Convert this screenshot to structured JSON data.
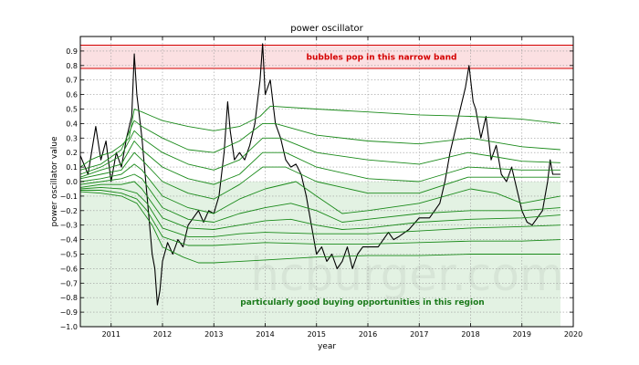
{
  "chart_data": {
    "type": "line",
    "title": "power oscillator",
    "xlabel": "year",
    "ylabel": "power oscillator value",
    "xlim": [
      2010.4,
      2020.0
    ],
    "ylim": [
      -1.0,
      1.0
    ],
    "grid": true,
    "x_ticks": [
      "2011",
      "2012",
      "2013",
      "2014",
      "2015",
      "2016",
      "2017",
      "2018",
      "2019",
      "2020"
    ],
    "y_ticks": [
      "−1.0",
      "−0.9",
      "−0.8",
      "−0.7",
      "−0.6",
      "−0.5",
      "−0.4",
      "−0.3",
      "−0.2",
      "−0.1",
      "0.0",
      "0.1",
      "0.2",
      "0.3",
      "0.4",
      "0.5",
      "0.6",
      "0.7",
      "0.8",
      "0.9"
    ],
    "top_band": {
      "y_range": [
        0.78,
        0.94
      ],
      "label": "bubbles pop in this narrow band",
      "color": "#d40000",
      "fill": "#fbe0e2"
    },
    "bottom_region": {
      "y_range": [
        -1.0,
        0.0
      ],
      "x_range": [
        2010.4,
        2019.75
      ],
      "label": "particularly good buying opportunities in this region",
      "color": "#1a7a1a",
      "fill": "#e3f2e3"
    },
    "watermark": "hcburger.com",
    "series": [
      {
        "color": "#000000",
        "x": [
          2010.4,
          2010.55,
          2010.7,
          2010.8,
          2010.9,
          2011.0,
          2011.1,
          2011.2,
          2011.3,
          2011.4,
          2011.45,
          2011.5,
          2011.6,
          2011.7,
          2011.8,
          2011.85,
          2011.9,
          2011.95,
          2012.0,
          2012.1,
          2012.2,
          2012.3,
          2012.4,
          2012.5,
          2012.6,
          2012.7,
          2012.8,
          2012.9,
          2013.0,
          2013.1,
          2013.2,
          2013.27,
          2013.32,
          2013.4,
          2013.5,
          2013.6,
          2013.7,
          2013.8,
          2013.9,
          2013.95,
          2014.0,
          2014.1,
          2014.2,
          2014.3,
          2014.4,
          2014.5,
          2014.6,
          2014.7,
          2014.8,
          2014.9,
          2015.0,
          2015.1,
          2015.2,
          2015.3,
          2015.4,
          2015.5,
          2015.6,
          2015.7,
          2015.8,
          2015.9,
          2016.0,
          2016.2,
          2016.4,
          2016.5,
          2016.6,
          2016.8,
          2017.0,
          2017.2,
          2017.4,
          2017.5,
          2017.6,
          2017.8,
          2017.9,
          2017.97,
          2018.05,
          2018.1,
          2018.2,
          2018.3,
          2018.4,
          2018.5,
          2018.6,
          2018.7,
          2018.8,
          2018.9,
          2019.0,
          2019.1,
          2019.2,
          2019.3,
          2019.4,
          2019.5,
          2019.55,
          2019.6,
          2019.7,
          2019.75
        ],
        "y": [
          0.18,
          0.05,
          0.38,
          0.15,
          0.28,
          0.0,
          0.2,
          0.1,
          0.3,
          0.45,
          0.88,
          0.6,
          0.3,
          -0.1,
          -0.5,
          -0.6,
          -0.85,
          -0.75,
          -0.55,
          -0.42,
          -0.5,
          -0.4,
          -0.45,
          -0.3,
          -0.25,
          -0.2,
          -0.28,
          -0.2,
          -0.22,
          -0.1,
          0.2,
          0.55,
          0.35,
          0.15,
          0.2,
          0.15,
          0.25,
          0.4,
          0.7,
          0.95,
          0.6,
          0.7,
          0.4,
          0.3,
          0.15,
          0.1,
          0.12,
          0.05,
          -0.1,
          -0.3,
          -0.5,
          -0.45,
          -0.55,
          -0.5,
          -0.6,
          -0.55,
          -0.45,
          -0.6,
          -0.5,
          -0.45,
          -0.45,
          -0.45,
          -0.35,
          -0.4,
          -0.38,
          -0.33,
          -0.25,
          -0.25,
          -0.15,
          0.0,
          0.2,
          0.5,
          0.65,
          0.8,
          0.55,
          0.5,
          0.3,
          0.45,
          0.15,
          0.25,
          0.05,
          0.0,
          0.1,
          -0.05,
          -0.2,
          -0.28,
          -0.3,
          -0.25,
          -0.2,
          0.0,
          0.15,
          0.05,
          0.05,
          0.05
        ]
      },
      {
        "color": "#1a8a1a",
        "x": [
          2010.4,
          2010.6,
          2010.8,
          2011.0,
          2011.2,
          2011.35,
          2011.45,
          2011.6,
          2011.8,
          2012.0,
          2012.5,
          2013.0,
          2013.5,
          2013.9,
          2014.1,
          2015.0,
          2016.0,
          2017.0,
          2018.0,
          2019.0,
          2019.75
        ],
        "y": [
          0.1,
          0.15,
          0.18,
          0.2,
          0.25,
          0.3,
          0.5,
          0.48,
          0.45,
          0.42,
          0.38,
          0.35,
          0.38,
          0.45,
          0.52,
          0.5,
          0.48,
          0.46,
          0.45,
          0.43,
          0.4
        ]
      },
      {
        "color": "#1a8a1a",
        "x": [
          2010.4,
          2010.8,
          2011.2,
          2011.45,
          2011.6,
          2012.0,
          2012.5,
          2013.0,
          2013.5,
          2013.95,
          2014.2,
          2015.0,
          2016.0,
          2017.0,
          2018.0,
          2018.5,
          2019.0,
          2019.75
        ],
        "y": [
          0.08,
          0.12,
          0.22,
          0.42,
          0.38,
          0.3,
          0.22,
          0.2,
          0.28,
          0.4,
          0.4,
          0.32,
          0.28,
          0.26,
          0.3,
          0.27,
          0.24,
          0.22
        ]
      },
      {
        "color": "#1a8a1a",
        "x": [
          2010.4,
          2010.8,
          2011.2,
          2011.45,
          2011.6,
          2012.0,
          2012.5,
          2013.0,
          2013.5,
          2013.95,
          2014.3,
          2015.0,
          2016.0,
          2017.0,
          2017.95,
          2018.5,
          2019.0,
          2019.75
        ],
        "y": [
          0.05,
          0.1,
          0.18,
          0.35,
          0.3,
          0.2,
          0.12,
          0.08,
          0.15,
          0.3,
          0.3,
          0.2,
          0.15,
          0.12,
          0.2,
          0.17,
          0.14,
          0.13
        ]
      },
      {
        "color": "#1a8a1a",
        "x": [
          2010.4,
          2010.8,
          2011.2,
          2011.45,
          2011.6,
          2012.0,
          2012.5,
          2013.0,
          2013.5,
          2013.95,
          2014.4,
          2015.0,
          2016.0,
          2017.0,
          2017.95,
          2018.5,
          2019.0,
          2019.75
        ],
        "y": [
          0.03,
          0.08,
          0.12,
          0.28,
          0.22,
          0.1,
          0.02,
          -0.02,
          0.05,
          0.2,
          0.2,
          0.1,
          0.02,
          0.0,
          0.1,
          0.09,
          0.08,
          0.08
        ]
      },
      {
        "color": "#1a8a1a",
        "x": [
          2010.4,
          2010.8,
          2011.2,
          2011.45,
          2011.6,
          2012.0,
          2012.5,
          2013.0,
          2013.5,
          2013.95,
          2014.4,
          2015.0,
          2016.0,
          2017.0,
          2017.95,
          2018.5,
          2019.0,
          2019.75
        ],
        "y": [
          0.02,
          0.05,
          0.08,
          0.2,
          0.15,
          0.0,
          -0.08,
          -0.12,
          -0.02,
          0.1,
          0.1,
          0.0,
          -0.08,
          -0.08,
          0.03,
          0.03,
          0.03,
          0.03
        ]
      },
      {
        "color": "#1a8a1a",
        "x": [
          2010.4,
          2010.8,
          2011.2,
          2011.45,
          2011.6,
          2012.0,
          2012.5,
          2013.0,
          2013.5,
          2014.0,
          2014.6,
          2015.0,
          2015.5,
          2016.0,
          2017.0,
          2018.0,
          2018.5,
          2019.0,
          2019.75
        ],
        "y": [
          0.0,
          0.02,
          0.05,
          0.12,
          0.08,
          -0.1,
          -0.18,
          -0.22,
          -0.12,
          -0.05,
          0.0,
          -0.1,
          -0.22,
          -0.2,
          -0.15,
          -0.05,
          -0.08,
          -0.15,
          -0.1
        ]
      },
      {
        "color": "#1a8a1a",
        "x": [
          2010.4,
          2010.8,
          2011.2,
          2011.45,
          2011.6,
          2012.0,
          2012.5,
          2013.0,
          2013.5,
          2014.0,
          2014.5,
          2015.0,
          2015.5,
          2016.0,
          2017.0,
          2018.0,
          2019.0,
          2019.75
        ],
        "y": [
          -0.02,
          0.0,
          0.02,
          0.05,
          0.02,
          -0.18,
          -0.26,
          -0.28,
          -0.22,
          -0.18,
          -0.15,
          -0.2,
          -0.28,
          -0.26,
          -0.22,
          -0.2,
          -0.2,
          -0.18
        ]
      },
      {
        "color": "#1a8a1a",
        "x": [
          2010.4,
          2010.8,
          2011.2,
          2011.45,
          2011.6,
          2012.0,
          2012.5,
          2013.0,
          2013.5,
          2014.0,
          2014.5,
          2015.0,
          2015.5,
          2016.0,
          2017.0,
          2018.0,
          2019.0,
          2019.75
        ],
        "y": [
          -0.04,
          -0.02,
          -0.02,
          0.0,
          -0.05,
          -0.25,
          -0.32,
          -0.33,
          -0.3,
          -0.27,
          -0.26,
          -0.3,
          -0.33,
          -0.32,
          -0.28,
          -0.26,
          -0.25,
          -0.23
        ]
      },
      {
        "color": "#1a8a1a",
        "x": [
          2010.4,
          2010.8,
          2011.2,
          2011.5,
          2011.7,
          2012.0,
          2012.5,
          2013.0,
          2013.5,
          2014.0,
          2015.0,
          2016.0,
          2017.0,
          2018.0,
          2019.0,
          2019.75
        ],
        "y": [
          -0.05,
          -0.04,
          -0.05,
          -0.08,
          -0.15,
          -0.32,
          -0.38,
          -0.38,
          -0.36,
          -0.35,
          -0.36,
          -0.36,
          -0.34,
          -0.32,
          -0.31,
          -0.3
        ]
      },
      {
        "color": "#1a8a1a",
        "x": [
          2010.4,
          2010.8,
          2011.2,
          2011.5,
          2011.7,
          2012.0,
          2012.5,
          2013.0,
          2013.5,
          2014.0,
          2015.0,
          2016.0,
          2017.0,
          2018.0,
          2019.0,
          2019.75
        ],
        "y": [
          -0.06,
          -0.06,
          -0.08,
          -0.12,
          -0.2,
          -0.38,
          -0.44,
          -0.44,
          -0.43,
          -0.42,
          -0.43,
          -0.43,
          -0.42,
          -0.41,
          -0.41,
          -0.4
        ]
      },
      {
        "color": "#1a8a1a",
        "x": [
          2010.4,
          2010.8,
          2011.2,
          2011.5,
          2011.8,
          2012.0,
          2012.4,
          2012.7,
          2013.0,
          2014.0,
          2015.0,
          2016.0,
          2017.0,
          2018.0,
          2019.0,
          2019.75
        ],
        "y": [
          -0.07,
          -0.08,
          -0.1,
          -0.15,
          -0.3,
          -0.45,
          -0.52,
          -0.56,
          -0.56,
          -0.54,
          -0.52,
          -0.51,
          -0.51,
          -0.5,
          -0.5,
          -0.5
        ]
      }
    ]
  }
}
